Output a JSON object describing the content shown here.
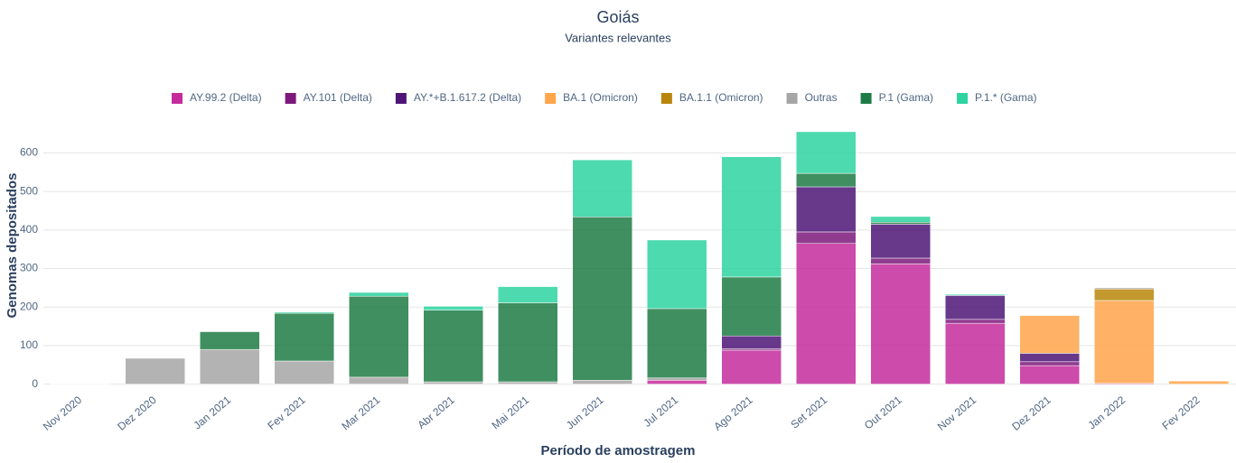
{
  "chart_data": {
    "type": "stacked_bar",
    "title": "Goiás",
    "subtitle": "Variantes relevantes",
    "x_label": "Período de amostragem",
    "y_label": "Genomas depositados",
    "categories": [
      "Nov 2020",
      "Dez 2020",
      "Jan 2021",
      "Fev 2021",
      "Mar 2021",
      "Abr 2021",
      "Mai 2021",
      "Jun 2021",
      "Jul 2021",
      "Ago 2021",
      "Set 2021",
      "Out 2021",
      "Nov 2021",
      "Dez 2021",
      "Jan 2022",
      "Fev 2022"
    ],
    "series": [
      {
        "name": "AY.99.2 (Delta)",
        "color": "#c42c9c",
        "values": [
          0,
          0,
          0,
          0,
          0,
          0,
          0,
          0,
          10,
          88,
          365,
          312,
          158,
          48,
          2,
          0
        ]
      },
      {
        "name": "AY.101 (Delta)",
        "color": "#7b1a7b",
        "values": [
          0,
          0,
          0,
          0,
          0,
          0,
          0,
          0,
          0,
          4,
          30,
          15,
          10,
          10,
          0,
          0
        ]
      },
      {
        "name": "AY.*+B.1.617.2 (Delta)",
        "color": "#4e1577",
        "values": [
          0,
          0,
          0,
          0,
          0,
          0,
          0,
          0,
          0,
          33,
          117,
          88,
          62,
          22,
          0,
          0
        ]
      },
      {
        "name": "BA.1 (Omicron)",
        "color": "#ffa54a",
        "values": [
          0,
          0,
          0,
          0,
          0,
          0,
          0,
          0,
          0,
          0,
          0,
          0,
          0,
          98,
          215,
          8
        ]
      },
      {
        "name": "BA.1.1 (Omicron)",
        "color": "#b8860b",
        "values": [
          0,
          0,
          0,
          0,
          0,
          0,
          0,
          0,
          0,
          0,
          0,
          0,
          0,
          0,
          30,
          0
        ]
      },
      {
        "name": "Outras",
        "color": "#a6a6a6",
        "values": [
          1,
          67,
          90,
          60,
          18,
          6,
          6,
          10,
          6,
          0,
          0,
          0,
          0,
          0,
          3,
          0
        ]
      },
      {
        "name": "P.1 (Gama)",
        "color": "#1e7b45",
        "values": [
          0,
          0,
          46,
          124,
          210,
          186,
          205,
          424,
          180,
          153,
          35,
          5,
          0,
          0,
          0,
          0
        ]
      },
      {
        "name": "P.1.* (Gama)",
        "color": "#2ed4a0",
        "values": [
          0,
          0,
          0,
          3,
          10,
          10,
          42,
          148,
          178,
          312,
          108,
          15,
          3,
          0,
          0,
          0
        ]
      }
    ],
    "ylim": [
      -15,
      690
    ],
    "yticks": [
      0,
      100,
      200,
      300,
      400,
      500,
      600
    ],
    "grid": true,
    "legend": "top"
  }
}
